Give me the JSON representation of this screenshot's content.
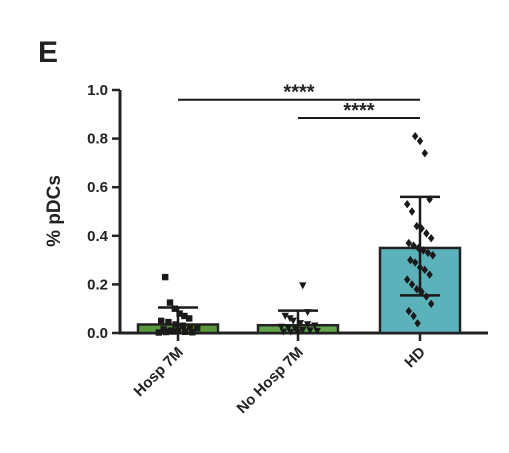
{
  "panel_label": "E",
  "chart_data": {
    "type": "bar",
    "ylabel": "% pDCs",
    "xlabel": "",
    "ylim": [
      0,
      1.0
    ],
    "yticks": [
      "0.0",
      "0.2",
      "0.4",
      "0.6",
      "0.8",
      "1.0"
    ],
    "categories": [
      "Hosp 7M",
      "No Hosp 7M",
      "HD"
    ],
    "values": [
      0.035,
      0.032,
      0.35
    ],
    "error_bars": [
      {
        "low": 0.0,
        "high": 0.105
      },
      {
        "low": 0.0,
        "high": 0.092
      },
      {
        "low": 0.155,
        "high": 0.56
      }
    ],
    "colors": [
      "#5a9a3c",
      "#62a54a",
      "#5bb2bb"
    ],
    "markers": [
      "square",
      "triangle-down",
      "diamond"
    ],
    "points": [
      [
        0.23,
        0.125,
        0.1,
        0.08,
        0.07,
        0.06,
        0.05,
        0.045,
        0.035,
        0.03,
        0.025,
        0.02,
        0.015,
        0.01,
        0.008,
        0.005,
        0.003,
        0.002,
        0.004,
        0.006
      ],
      [
        0.195,
        0.085,
        0.07,
        0.06,
        0.05,
        0.04,
        0.035,
        0.03,
        0.025,
        0.02,
        0.015,
        0.012,
        0.01,
        0.008,
        0.005,
        0.004,
        0.003
      ],
      [
        0.81,
        0.79,
        0.74,
        0.55,
        0.53,
        0.5,
        0.44,
        0.43,
        0.41,
        0.39,
        0.37,
        0.36,
        0.35,
        0.34,
        0.33,
        0.32,
        0.3,
        0.29,
        0.27,
        0.26,
        0.24,
        0.22,
        0.2,
        0.18,
        0.17,
        0.15,
        0.12,
        0.09,
        0.07,
        0.04
      ]
    ],
    "significance": [
      {
        "from": 0,
        "to": 2,
        "y": 0.96,
        "label": "****"
      },
      {
        "from": 1,
        "to": 2,
        "y": 0.885,
        "label": "****"
      }
    ]
  }
}
